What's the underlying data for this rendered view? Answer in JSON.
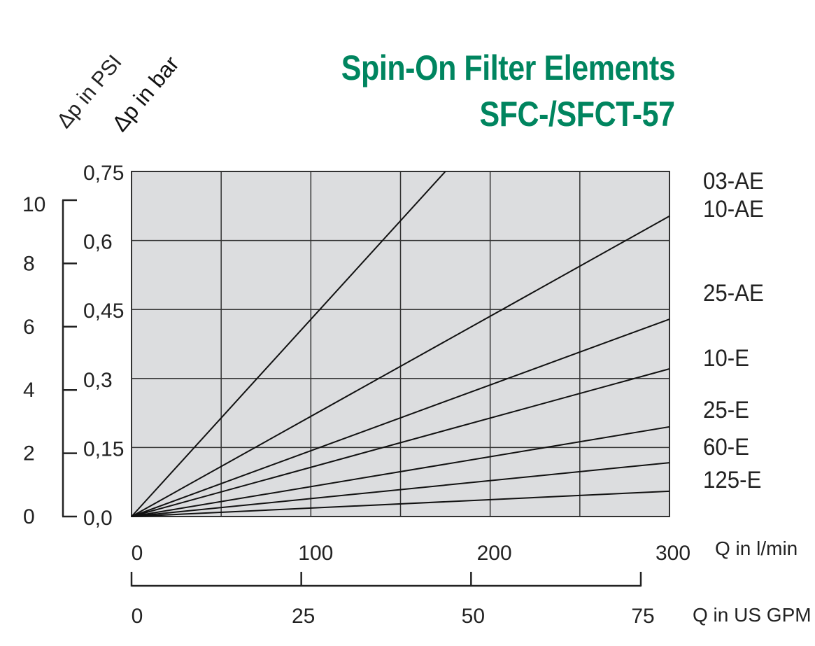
{
  "title_line1": "Spin-On Filter Elements",
  "title_line2": "SFC-/SFCT-57",
  "title_color": "#00855f",
  "chart_data": {
    "type": "line",
    "title": "Spin-On Filter Elements SFC-/SFCT-57",
    "xlabel": "Q in l/min",
    "xlabel_secondary": "Q in US GPM",
    "ylabel": "Δp in bar",
    "ylabel_secondary": "Δp in PSI",
    "xlim": [
      0,
      300
    ],
    "ylim": [
      0,
      0.75
    ],
    "x_ticks": [
      "0",
      "100",
      "200",
      "300"
    ],
    "x_ticks_values": [
      0,
      100,
      200,
      300
    ],
    "x_secondary_ticks": [
      "0",
      "25",
      "50",
      "75"
    ],
    "x_secondary_ticks_values": [
      0,
      25,
      50,
      75
    ],
    "y_ticks": [
      "0,0",
      "0,15",
      "0,3",
      "0,45",
      "0,6",
      "0,75"
    ],
    "y_ticks_values": [
      0,
      0.15,
      0.3,
      0.45,
      0.6,
      0.75
    ],
    "y_secondary_ticks": [
      "0",
      "2",
      "4",
      "6",
      "8",
      "10"
    ],
    "y_secondary_ticks_values": [
      0,
      2,
      4,
      6,
      8,
      10
    ],
    "grid": true,
    "plot_background": "#dcdddf",
    "series": [
      {
        "name": "03-AE",
        "x": [
          0,
          175
        ],
        "y": [
          0,
          0.75
        ]
      },
      {
        "name": "10-AE",
        "x": [
          0,
          300
        ],
        "y": [
          0,
          0.653
        ]
      },
      {
        "name": "25-AE",
        "x": [
          0,
          300
        ],
        "y": [
          0,
          0.429
        ]
      },
      {
        "name": "10-E",
        "x": [
          0,
          300
        ],
        "y": [
          0,
          0.321
        ]
      },
      {
        "name": "25-E",
        "x": [
          0,
          300
        ],
        "y": [
          0,
          0.195
        ]
      },
      {
        "name": "60-E",
        "x": [
          0,
          300
        ],
        "y": [
          0,
          0.117
        ]
      },
      {
        "name": "125-E",
        "x": [
          0,
          300
        ],
        "y": [
          0,
          0.055
        ]
      }
    ]
  }
}
